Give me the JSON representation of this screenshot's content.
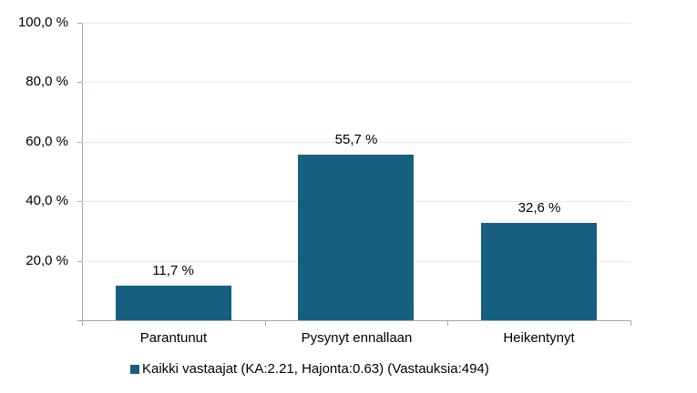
{
  "chart_data": {
    "type": "bar",
    "title": "",
    "xlabel": "",
    "ylabel": "",
    "categories": [
      "Parantunut",
      "Pysynyt ennallaan",
      "Heikentynyt"
    ],
    "series": [
      {
        "name": "Kaikki vastaajat (KA:2.21, Hajonta:0.63) (Vastauksia:494)",
        "values": [
          11.7,
          55.7,
          32.6
        ],
        "value_labels": [
          "11,7 %",
          "55,7 %",
          "32,6 %"
        ],
        "color": "#175f81"
      }
    ],
    "ylim": [
      0,
      100
    ],
    "yticks": [
      20,
      40,
      60,
      80,
      100
    ],
    "ytick_labels": [
      "20,0 %",
      "40,0 %",
      "60,0 %",
      "80,0 %",
      "100,0 %"
    ],
    "grid": true,
    "legend_position": "bottom"
  },
  "legend": {
    "label": "Kaikki vastaajat (KA:2.21, Hajonta:0.63) (Vastauksia:494)"
  }
}
